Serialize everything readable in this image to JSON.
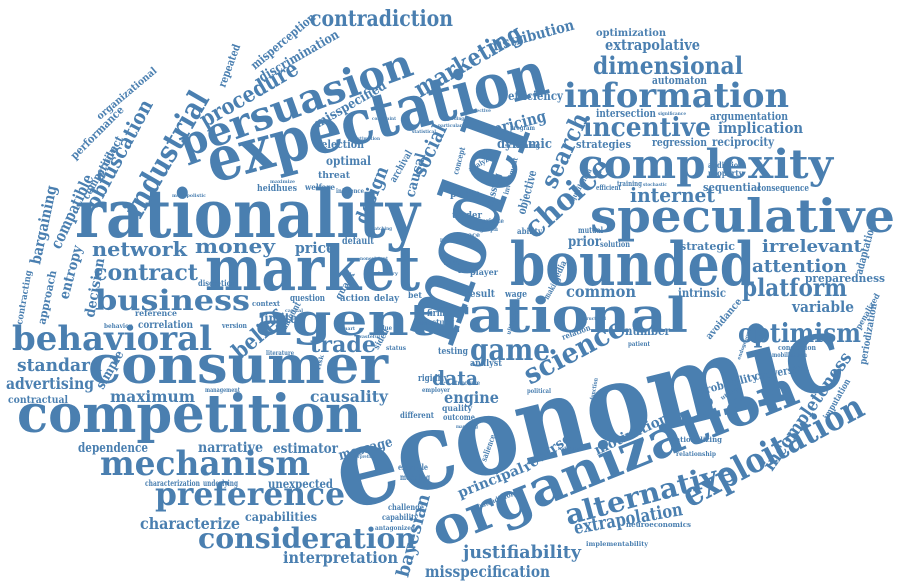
{
  "word_cloud": {
    "color": "#4a7fb0",
    "background": "#ffffff",
    "words": [
      "economic",
      "model",
      "rationality",
      "expectation",
      "market",
      "bounded",
      "consumer",
      "competition",
      "organization",
      "speculative",
      "rational",
      "complexity",
      "agent",
      "persuasion",
      "behavioral",
      "mechanism",
      "information",
      "exploitation",
      "preference",
      "consideration",
      "business",
      "alternative",
      "industrial",
      "choice",
      "game",
      "science",
      "optimism",
      "incentive",
      "platform",
      "dimensional",
      "contradiction",
      "marketing",
      "procedure",
      "contract",
      "trade",
      "network",
      "money",
      "standard",
      "advertising",
      "maximum",
      "data",
      "engine",
      "causality",
      "belief",
      "incompleteness",
      "obfuscation",
      "social",
      "search",
      "design",
      "internet",
      "extrapolation",
      "justifiability",
      "misspecification",
      "interpretation",
      "characterize",
      "bayesian",
      "attention",
      "irrelevant",
      "common",
      "principal",
      "reverse",
      "motivation",
      "distribution",
      "extrapolative",
      "optimization",
      "implication",
      "pricing",
      "dynamic",
      "misspecified",
      "discrimination",
      "misperception",
      "repeated",
      "performance",
      "organizational",
      "competitive",
      "compatible",
      "product",
      "bargaining",
      "decision",
      "entropy",
      "approach",
      "contracting",
      "simple",
      "contractual",
      "dependence",
      "narrative",
      "estimator",
      "message",
      "unexpected",
      "capabilities",
      "characterization",
      "underlying",
      "modeling",
      "example",
      "challenge",
      "capability",
      "antagonized",
      "neuroeconomics",
      "implementability",
      "rationalizing",
      "relationship",
      "imputation",
      "periodization",
      "penalized",
      "adaptation",
      "preparedness",
      "variable",
      "strategic",
      "sequential",
      "consequence",
      "argumentation",
      "reciprocity",
      "regression",
      "automaton",
      "efficiency",
      "intersection",
      "strategies",
      "selection",
      "optimal",
      "welfare",
      "threat",
      "heidhues",
      "limited",
      "price",
      "default",
      "quack",
      "action",
      "delay",
      "result",
      "wage",
      "testing",
      "analyst",
      "rigidity",
      "quality",
      "outcome",
      "different",
      "version",
      "context",
      "question",
      "reference",
      "correlation",
      "discretion",
      "number",
      "intrinsic",
      "solution",
      "prior",
      "causal",
      "mutual",
      "fund",
      "bias",
      "player",
      "firm",
      "study",
      "firms",
      "political",
      "probability",
      "conversion",
      "avoidance",
      "concession",
      "mobilization",
      "patient",
      "utility",
      "ability",
      "addiction",
      "property",
      "training",
      "efficient",
      "screening",
      "program",
      "subjective",
      "estimation",
      "graph",
      "private",
      "space",
      "random",
      "nonexistent",
      "matching",
      "lottery",
      "behavior",
      "management",
      "literature",
      "amount",
      "capital",
      "monopolistic",
      "maximize",
      "inference",
      "archival",
      "pump",
      "trader",
      "missing",
      "objective",
      "significance",
      "constraint",
      "statistical",
      "regarding",
      "particular",
      "concept",
      "analyze",
      "investment",
      "equilibrium",
      "media",
      "making",
      "ultimate",
      "relation",
      "sided",
      "status",
      "structure",
      "employer",
      "managing",
      "salience",
      "individual",
      "interpreting",
      "contradictory",
      "structural",
      "function",
      "bet",
      "risk",
      "stochastic",
      "endogenous",
      "value",
      "smart",
      "wasteful"
    ]
  }
}
